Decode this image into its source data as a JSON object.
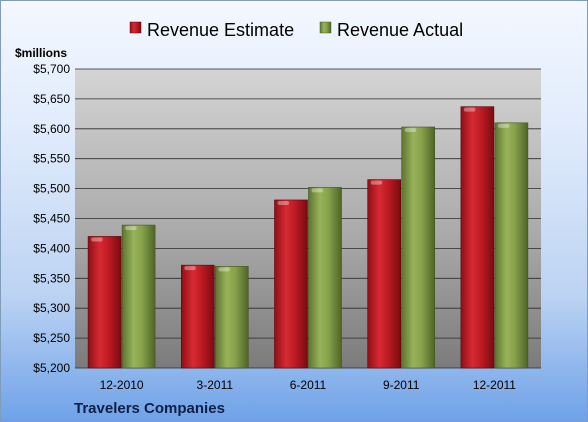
{
  "chart_data": {
    "type": "bar",
    "y_unit_label": "$millions",
    "footer": "Travelers Companies",
    "categories": [
      "12-2010",
      "3-2011",
      "6-2011",
      "9-2011",
      "12-2011"
    ],
    "series": [
      {
        "name": "Revenue Estimate",
        "color": "#c8202a",
        "values": [
          5420,
          5372,
          5481,
          5515,
          5637
        ]
      },
      {
        "name": "Revenue Actual",
        "color": "#86a24a",
        "values": [
          5439,
          5370,
          5502,
          5603,
          5610
        ]
      }
    ],
    "ylim": [
      5200,
      5700
    ],
    "y_ticks": [
      "$5,200",
      "$5,250",
      "$5,300",
      "$5,350",
      "$5,400",
      "$5,450",
      "$5,500",
      "$5,550",
      "$5,600",
      "$5,650",
      "$5,700"
    ],
    "grid": true,
    "legend_position": "top"
  }
}
